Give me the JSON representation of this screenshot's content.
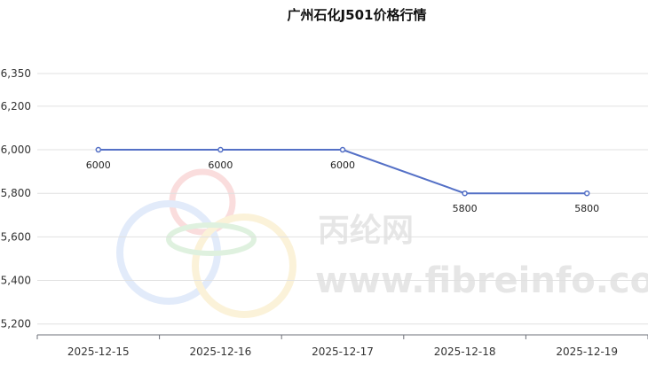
{
  "chart_data": {
    "type": "line",
    "title": "广州石化J501价格行情",
    "categories": [
      "2025-12-15",
      "2025-12-16",
      "2025-12-17",
      "2025-12-18",
      "2025-12-19"
    ],
    "series": [
      {
        "values": [
          6000,
          6000,
          6000,
          5800,
          5800
        ]
      }
    ],
    "data_labels": [
      "6000",
      "6000",
      "6000",
      "5800",
      "5800"
    ],
    "y_ticks": [
      5200,
      5400,
      5600,
      5800,
      6000,
      6200,
      6350
    ],
    "y_tick_labels": [
      "5,200",
      "5,400",
      "5,600",
      "5,800",
      "6,000",
      "6,200",
      "6,350"
    ],
    "ylim": [
      5150,
      6350
    ],
    "grid": true,
    "line_color": "#5470c6"
  },
  "watermark": {
    "brand_cn": "丙纶网",
    "site": "www.fibreinfo.com"
  }
}
